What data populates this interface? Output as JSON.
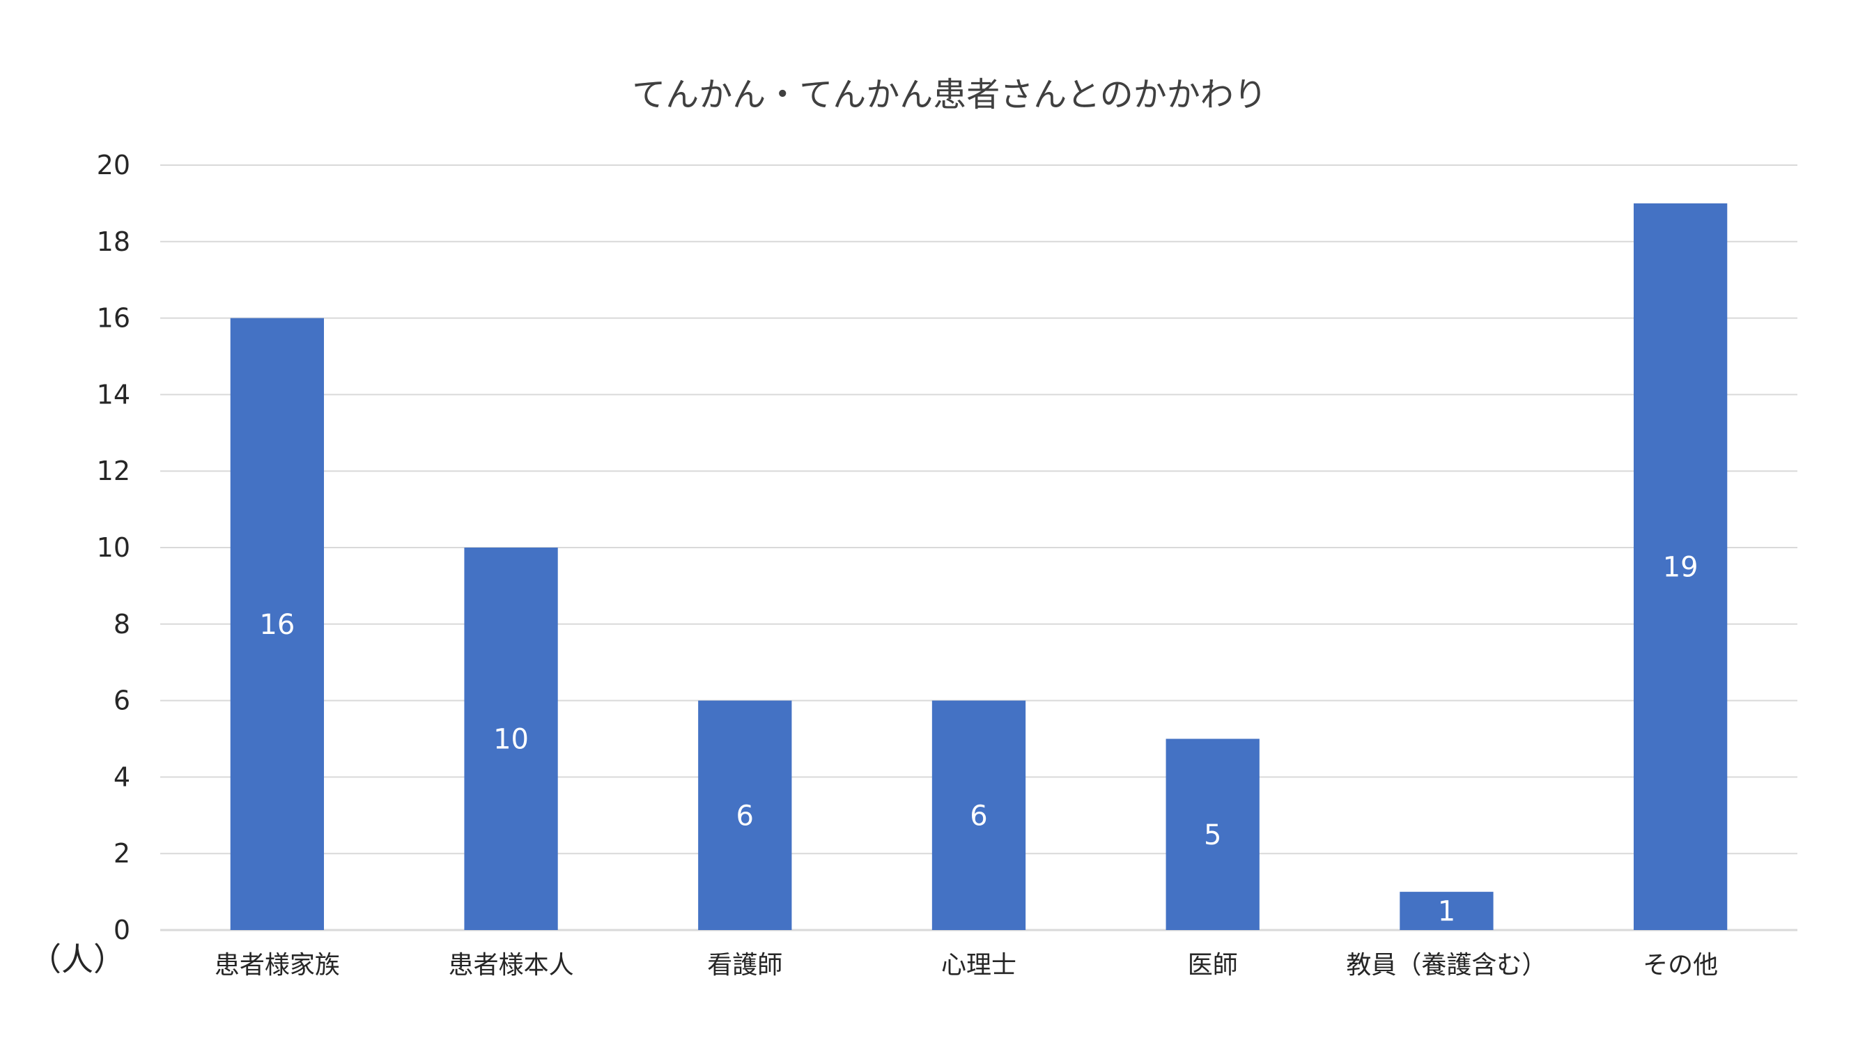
{
  "chart_data": {
    "type": "bar",
    "title": "てんかん・てんかん患者さんとのかかわり",
    "ylabel": "（人）",
    "xlabel": "",
    "categories": [
      "患者様家族",
      "患者様本人",
      "看護師",
      "心理士",
      "医師",
      "教員（養護含む）",
      "その他"
    ],
    "values": [
      16,
      10,
      6,
      6,
      5,
      1,
      19
    ],
    "ylim": [
      0,
      20
    ],
    "yticks": [
      "0",
      "2",
      "4",
      "6",
      "8",
      "10",
      "12",
      "14",
      "16",
      "18",
      "20"
    ],
    "grid": true,
    "data_labels": true,
    "bar_color": "#4472C4",
    "grid_color": "#D9D9D9"
  }
}
